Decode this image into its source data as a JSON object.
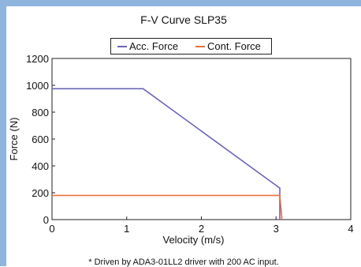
{
  "chart_data": {
    "type": "line",
    "title": "F-V Curve  SLP35",
    "xlabel": "Velocity (m/s)",
    "ylabel": "Force (N)",
    "xlim": [
      0,
      4
    ],
    "ylim": [
      0,
      1200
    ],
    "xticks": [
      0,
      1,
      2,
      3,
      4
    ],
    "yticks": [
      0,
      200,
      400,
      600,
      800,
      1000,
      1200
    ],
    "grid": false,
    "legend_position": "top-center",
    "series": [
      {
        "name": "Acc. Force",
        "color": "#6a63b8",
        "points": [
          [
            0,
            975
          ],
          [
            1.22,
            975
          ],
          [
            3.05,
            235
          ],
          [
            3.05,
            0
          ]
        ]
      },
      {
        "name": "Cont. Force",
        "color": "#e8703a",
        "points": [
          [
            0,
            180
          ],
          [
            3.05,
            180
          ],
          [
            3.08,
            0
          ]
        ]
      }
    ],
    "footnote": "* Driven by ADA3-01LL2 driver with 200 AC input."
  }
}
